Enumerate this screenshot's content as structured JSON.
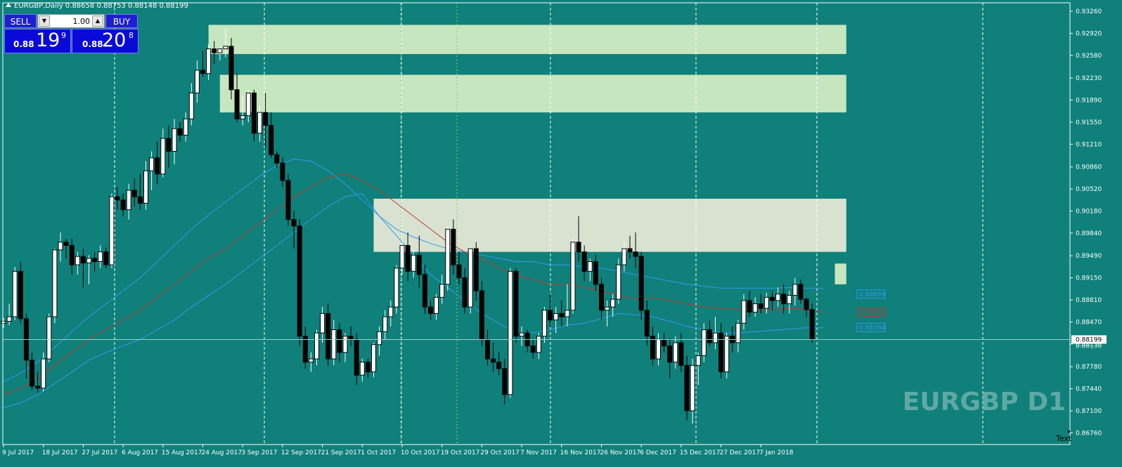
{
  "window": {
    "title": "EURGBP,Daily",
    "ohlc": "0.88658 0.88753 0.88148 0.88199"
  },
  "trade_panel": {
    "sell_label": "SELL",
    "buy_label": "BUY",
    "lot_value": "1.00",
    "bid_small": "0.88",
    "bid_big": "19",
    "bid_sup": "9",
    "ask_small": "0.88",
    "ask_big": "20",
    "ask_sup": "8"
  },
  "watermark": "EURGBP D1",
  "text_label": "Text",
  "colors": {
    "background": "#0f807a",
    "bull_candle": "#ffffff",
    "bear_candle": "#000000",
    "ma_middle": "#c0392b",
    "ma_band": "#2f9bf0",
    "zone_green": "#c6e6bf",
    "zone_grey": "#d9e2d0",
    "trade_panel_blue": "#1f1fd0"
  },
  "chart_data": {
    "type": "candlestick",
    "symbol": "EURGBP",
    "timeframe": "D1",
    "y_range": [
      0.8658,
      0.9339
    ],
    "price_ticks": [
      "0.93260",
      "0.92920",
      "0.92580",
      "0.92230",
      "0.91890",
      "0.91550",
      "0.91210",
      "0.90860",
      "0.90520",
      "0.90180",
      "0.89840",
      "0.89490",
      "0.89150",
      "0.88810",
      "0.88470",
      "0.88130",
      "0.87780",
      "0.87440",
      "0.87100",
      "0.86760"
    ],
    "date_labels": [
      {
        "label": "9 Jul 2017",
        "index": 0
      },
      {
        "label": "18 Jul 2017",
        "index": 7
      },
      {
        "label": "27 Jul 2017",
        "index": 14
      },
      {
        "label": "6 Aug 2017",
        "index": 21
      },
      {
        "label": "15 Aug 2017",
        "index": 28
      },
      {
        "label": "24 Aug 2017",
        "index": 35
      },
      {
        "label": "3 Sep 2017",
        "index": 42
      },
      {
        "label": "12 Sep 2017",
        "index": 49
      },
      {
        "label": "21 Sep 2017",
        "index": 56
      },
      {
        "label": "1 Oct 2017",
        "index": 63
      },
      {
        "label": "10 Oct 2017",
        "index": 70
      },
      {
        "label": "19 Oct 2017",
        "index": 77
      },
      {
        "label": "29 Oct 2017",
        "index": 84
      },
      {
        "label": "7 Nov 2017",
        "index": 91
      },
      {
        "label": "16 Nov 2017",
        "index": 98
      },
      {
        "label": "26 Nov 2017",
        "index": 105
      },
      {
        "label": "6 Dec 2017",
        "index": 112
      },
      {
        "label": "15 Dec 2017",
        "index": 119
      },
      {
        "label": "27 Dec 2017",
        "index": 126
      },
      {
        "label": "7 Jan 2018",
        "index": 133
      }
    ],
    "candles": [
      [
        0.8845,
        0.8853,
        0.8838,
        0.8848
      ],
      [
        0.8848,
        0.8875,
        0.8842,
        0.8855
      ],
      [
        0.8855,
        0.8932,
        0.885,
        0.8925
      ],
      [
        0.8925,
        0.894,
        0.8845,
        0.8852
      ],
      [
        0.8852,
        0.886,
        0.876,
        0.8788
      ],
      [
        0.8788,
        0.88,
        0.8742,
        0.8748
      ],
      [
        0.8748,
        0.877,
        0.8738,
        0.8745
      ],
      [
        0.8745,
        0.88,
        0.874,
        0.879
      ],
      [
        0.879,
        0.886,
        0.8785,
        0.8855
      ],
      [
        0.8855,
        0.896,
        0.8845,
        0.8958
      ],
      [
        0.8958,
        0.8985,
        0.894,
        0.897
      ],
      [
        0.897,
        0.8975,
        0.8945,
        0.8965
      ],
      [
        0.8965,
        0.8975,
        0.892,
        0.8935
      ],
      [
        0.8935,
        0.8955,
        0.892,
        0.8948
      ],
      [
        0.8948,
        0.896,
        0.89,
        0.8938
      ],
      [
        0.8938,
        0.895,
        0.8905,
        0.8945
      ],
      [
        0.8945,
        0.8955,
        0.8925,
        0.894
      ],
      [
        0.894,
        0.8965,
        0.893,
        0.8955
      ],
      [
        0.8955,
        0.8962,
        0.893,
        0.8935
      ],
      [
        0.8935,
        0.9045,
        0.893,
        0.904
      ],
      [
        0.904,
        0.9055,
        0.902,
        0.9035
      ],
      [
        0.9035,
        0.9045,
        0.901,
        0.902
      ],
      [
        0.902,
        0.906,
        0.9005,
        0.905
      ],
      [
        0.905,
        0.9068,
        0.9025,
        0.904
      ],
      [
        0.904,
        0.9075,
        0.902,
        0.903
      ],
      [
        0.903,
        0.9095,
        0.902,
        0.908
      ],
      [
        0.908,
        0.911,
        0.905,
        0.91
      ],
      [
        0.91,
        0.9125,
        0.906,
        0.9075
      ],
      [
        0.9075,
        0.9145,
        0.907,
        0.913
      ],
      [
        0.913,
        0.915,
        0.9085,
        0.911
      ],
      [
        0.911,
        0.916,
        0.909,
        0.9145
      ],
      [
        0.9145,
        0.9155,
        0.9125,
        0.9135
      ],
      [
        0.9135,
        0.917,
        0.9125,
        0.916
      ],
      [
        0.916,
        0.9215,
        0.915,
        0.92
      ],
      [
        0.92,
        0.925,
        0.9185,
        0.9235
      ],
      [
        0.9235,
        0.9265,
        0.9225,
        0.923
      ],
      [
        0.923,
        0.9275,
        0.922,
        0.9268
      ],
      [
        0.9268,
        0.928,
        0.9245,
        0.9262
      ],
      [
        0.9262,
        0.9272,
        0.925,
        0.9268
      ],
      [
        0.9268,
        0.93,
        0.9255,
        0.9272
      ],
      [
        0.9272,
        0.9285,
        0.919,
        0.9205
      ],
      [
        0.9205,
        0.923,
        0.9155,
        0.916
      ],
      [
        0.916,
        0.9195,
        0.915,
        0.9165
      ],
      [
        0.9165,
        0.9205,
        0.9155,
        0.92
      ],
      [
        0.92,
        0.9205,
        0.9125,
        0.9138
      ],
      [
        0.9138,
        0.918,
        0.9125,
        0.917
      ],
      [
        0.917,
        0.92,
        0.9115,
        0.915
      ],
      [
        0.915,
        0.917,
        0.91,
        0.9105
      ],
      [
        0.9105,
        0.911,
        0.9085,
        0.9092
      ],
      [
        0.9092,
        0.91,
        0.9055,
        0.9065
      ],
      [
        0.9065,
        0.9075,
        0.8995,
        0.9005
      ],
      [
        0.9005,
        0.9018,
        0.896,
        0.8995
      ],
      [
        0.8995,
        0.9005,
        0.881,
        0.8825
      ],
      [
        0.8825,
        0.884,
        0.8775,
        0.8785
      ],
      [
        0.8785,
        0.88,
        0.877,
        0.879
      ],
      [
        0.879,
        0.8835,
        0.878,
        0.883
      ],
      [
        0.883,
        0.887,
        0.8815,
        0.886
      ],
      [
        0.886,
        0.8875,
        0.878,
        0.879
      ],
      [
        0.879,
        0.885,
        0.878,
        0.8835
      ],
      [
        0.8835,
        0.8845,
        0.8785,
        0.88
      ],
      [
        0.88,
        0.883,
        0.8785,
        0.8825
      ],
      [
        0.8825,
        0.884,
        0.881,
        0.882
      ],
      [
        0.882,
        0.883,
        0.875,
        0.8765
      ],
      [
        0.8765,
        0.879,
        0.8755,
        0.8785
      ],
      [
        0.8785,
        0.879,
        0.8762,
        0.877
      ],
      [
        0.877,
        0.8815,
        0.8762,
        0.8812
      ],
      [
        0.8812,
        0.884,
        0.8795,
        0.8832
      ],
      [
        0.8832,
        0.8865,
        0.882,
        0.8855
      ],
      [
        0.8855,
        0.888,
        0.884,
        0.887
      ],
      [
        0.887,
        0.8935,
        0.886,
        0.893
      ],
      [
        0.893,
        0.897,
        0.892,
        0.8965
      ],
      [
        0.8965,
        0.8985,
        0.891,
        0.8925
      ],
      [
        0.8925,
        0.8958,
        0.8915,
        0.895
      ],
      [
        0.895,
        0.898,
        0.89,
        0.892
      ],
      [
        0.892,
        0.8935,
        0.886,
        0.887
      ],
      [
        0.887,
        0.888,
        0.885,
        0.886
      ],
      [
        0.886,
        0.889,
        0.885,
        0.8885
      ],
      [
        0.8885,
        0.892,
        0.8875,
        0.8905
      ],
      [
        0.8905,
        0.8995,
        0.8895,
        0.899
      ],
      [
        0.899,
        0.9005,
        0.892,
        0.8935
      ],
      [
        0.8935,
        0.8955,
        0.8905,
        0.8915
      ],
      [
        0.8915,
        0.893,
        0.886,
        0.887
      ],
      [
        0.887,
        0.8965,
        0.886,
        0.896
      ],
      [
        0.896,
        0.897,
        0.888,
        0.8895
      ],
      [
        0.8895,
        0.891,
        0.881,
        0.882
      ],
      [
        0.882,
        0.8835,
        0.878,
        0.879
      ],
      [
        0.879,
        0.8815,
        0.877,
        0.8785
      ],
      [
        0.8785,
        0.88,
        0.8765,
        0.8775
      ],
      [
        0.8775,
        0.879,
        0.872,
        0.8735
      ],
      [
        0.8735,
        0.893,
        0.873,
        0.8925
      ],
      [
        0.8925,
        0.893,
        0.8815,
        0.8825
      ],
      [
        0.8825,
        0.884,
        0.881,
        0.883
      ],
      [
        0.883,
        0.8835,
        0.88,
        0.881
      ],
      [
        0.881,
        0.882,
        0.879,
        0.88
      ],
      [
        0.88,
        0.883,
        0.879,
        0.8825
      ],
      [
        0.8825,
        0.887,
        0.8815,
        0.8865
      ],
      [
        0.8865,
        0.889,
        0.884,
        0.885
      ],
      [
        0.885,
        0.887,
        0.883,
        0.886
      ],
      [
        0.886,
        0.888,
        0.884,
        0.8855
      ],
      [
        0.8855,
        0.8905,
        0.884,
        0.8865
      ],
      [
        0.8865,
        0.8975,
        0.886,
        0.897
      ],
      [
        0.897,
        0.901,
        0.894,
        0.8955
      ],
      [
        0.8955,
        0.8965,
        0.891,
        0.8925
      ],
      [
        0.8925,
        0.8945,
        0.891,
        0.894
      ],
      [
        0.894,
        0.895,
        0.8895,
        0.8905
      ],
      [
        0.8905,
        0.8915,
        0.885,
        0.8865
      ],
      [
        0.8865,
        0.888,
        0.884,
        0.887
      ],
      [
        0.887,
        0.889,
        0.8855,
        0.8882
      ],
      [
        0.8882,
        0.8945,
        0.8875,
        0.8935
      ],
      [
        0.8935,
        0.897,
        0.8925,
        0.896
      ],
      [
        0.896,
        0.898,
        0.8945,
        0.8955
      ],
      [
        0.8955,
        0.8985,
        0.893,
        0.8948
      ],
      [
        0.8948,
        0.8955,
        0.885,
        0.8865
      ],
      [
        0.8865,
        0.888,
        0.881,
        0.8825
      ],
      [
        0.8825,
        0.884,
        0.878,
        0.879
      ],
      [
        0.879,
        0.883,
        0.878,
        0.882
      ],
      [
        0.882,
        0.883,
        0.88,
        0.881
      ],
      [
        0.881,
        0.8822,
        0.876,
        0.8785
      ],
      [
        0.8785,
        0.8825,
        0.8775,
        0.8815
      ],
      [
        0.8815,
        0.883,
        0.877,
        0.878
      ],
      [
        0.878,
        0.8795,
        0.8695,
        0.871
      ],
      [
        0.871,
        0.879,
        0.869,
        0.878
      ],
      [
        0.878,
        0.88,
        0.875,
        0.8795
      ],
      [
        0.8795,
        0.8845,
        0.8785,
        0.8835
      ],
      [
        0.8835,
        0.885,
        0.881,
        0.8815
      ],
      [
        0.8815,
        0.8855,
        0.8805,
        0.883
      ],
      [
        0.883,
        0.8845,
        0.876,
        0.877
      ],
      [
        0.877,
        0.883,
        0.876,
        0.8825
      ],
      [
        0.8825,
        0.884,
        0.88,
        0.8815
      ],
      [
        0.8815,
        0.885,
        0.88,
        0.8845
      ],
      [
        0.8845,
        0.889,
        0.8835,
        0.888
      ],
      [
        0.888,
        0.8895,
        0.8855,
        0.8862
      ],
      [
        0.8862,
        0.8885,
        0.8855,
        0.8875
      ],
      [
        0.8875,
        0.889,
        0.886,
        0.8868
      ],
      [
        0.8868,
        0.8892,
        0.886,
        0.8885
      ],
      [
        0.8885,
        0.8895,
        0.8865,
        0.888
      ],
      [
        0.888,
        0.89,
        0.887,
        0.889
      ],
      [
        0.889,
        0.8905,
        0.886,
        0.8875
      ],
      [
        0.8875,
        0.8895,
        0.886,
        0.8888
      ],
      [
        0.8888,
        0.8915,
        0.8872,
        0.8905
      ],
      [
        0.8905,
        0.8912,
        0.8875,
        0.8882
      ],
      [
        0.8882,
        0.8885,
        0.8855,
        0.8866
      ],
      [
        0.8866,
        0.8875,
        0.8815,
        0.882
      ]
    ],
    "ma_middle": [
      0.8735,
      0.8745,
      0.876,
      0.878,
      0.88,
      0.882,
      0.8835,
      0.885,
      0.8865,
      0.8885,
      0.8905,
      0.8925,
      0.8945,
      0.896,
      0.898,
      0.9,
      0.902,
      0.904,
      0.9055,
      0.907,
      0.9075,
      0.9065,
      0.905,
      0.903,
      0.901,
      0.899,
      0.897,
      0.8955,
      0.8945,
      0.893,
      0.892,
      0.8912,
      0.8905,
      0.8905,
      0.89,
      0.8895,
      0.8888,
      0.8882,
      0.8885,
      0.888,
      0.8875,
      0.887,
      0.8868,
      0.8866,
      0.8864,
      0.8866,
      0.8868,
      0.8866,
      0.8862
    ],
    "ma_upper": [
      0.8755,
      0.8768,
      0.8785,
      0.8808,
      0.8832,
      0.8855,
      0.8875,
      0.8895,
      0.8915,
      0.894,
      0.8965,
      0.899,
      0.9012,
      0.9032,
      0.9052,
      0.9072,
      0.9088,
      0.9098,
      0.9095,
      0.908,
      0.906,
      0.9035,
      0.901,
      0.899,
      0.8978,
      0.8968,
      0.896,
      0.8955,
      0.895,
      0.8945,
      0.894,
      0.894,
      0.8935,
      0.8935,
      0.8932,
      0.893,
      0.8925,
      0.892,
      0.8915,
      0.891,
      0.8905,
      0.8902,
      0.8899,
      0.8899,
      0.8899,
      0.8899,
      0.89,
      0.8899,
      0.8899
    ],
    "ma_lower": [
      0.8715,
      0.8722,
      0.8735,
      0.8752,
      0.877,
      0.8788,
      0.88,
      0.881,
      0.882,
      0.8835,
      0.885,
      0.887,
      0.8888,
      0.8905,
      0.8925,
      0.8945,
      0.8965,
      0.8985,
      0.9005,
      0.9025,
      0.904,
      0.9045,
      0.901,
      0.898,
      0.895,
      0.892,
      0.89,
      0.888,
      0.886,
      0.8845,
      0.883,
      0.883,
      0.8835,
      0.8842,
      0.8845,
      0.8852,
      0.886,
      0.8858,
      0.8855,
      0.8848,
      0.884,
      0.8835,
      0.883,
      0.883,
      0.8832,
      0.8834,
      0.8836,
      0.8838,
      0.8838
    ],
    "zones": [
      {
        "from_index": 36,
        "to_index": 148,
        "top": 0.9305,
        "bottom": 0.926,
        "color": "zone_green"
      },
      {
        "from_index": 38,
        "to_index": 148,
        "top": 0.9228,
        "bottom": 0.917,
        "color": "zone_green"
      },
      {
        "from_index": 65,
        "to_index": 148,
        "top": 0.9037,
        "bottom": 0.8955,
        "color": "zone_grey"
      },
      {
        "from_index": 146,
        "to_index": 148,
        "top": 0.8937,
        "bottom": 0.8905,
        "color": "zone_green"
      }
    ],
    "price_labels": [
      {
        "text": "0.88899",
        "value": 0.88899,
        "color": "#2f9bf0"
      },
      {
        "text": "0.88622",
        "value": 0.88622,
        "color": "#c0392b"
      },
      {
        "text": "0.88384",
        "value": 0.88384,
        "color": "#2f9bf0"
      }
    ],
    "current_price": {
      "text": "0.88199",
      "value": 0.88199
    },
    "lower_ask_label": "0.88130"
  }
}
